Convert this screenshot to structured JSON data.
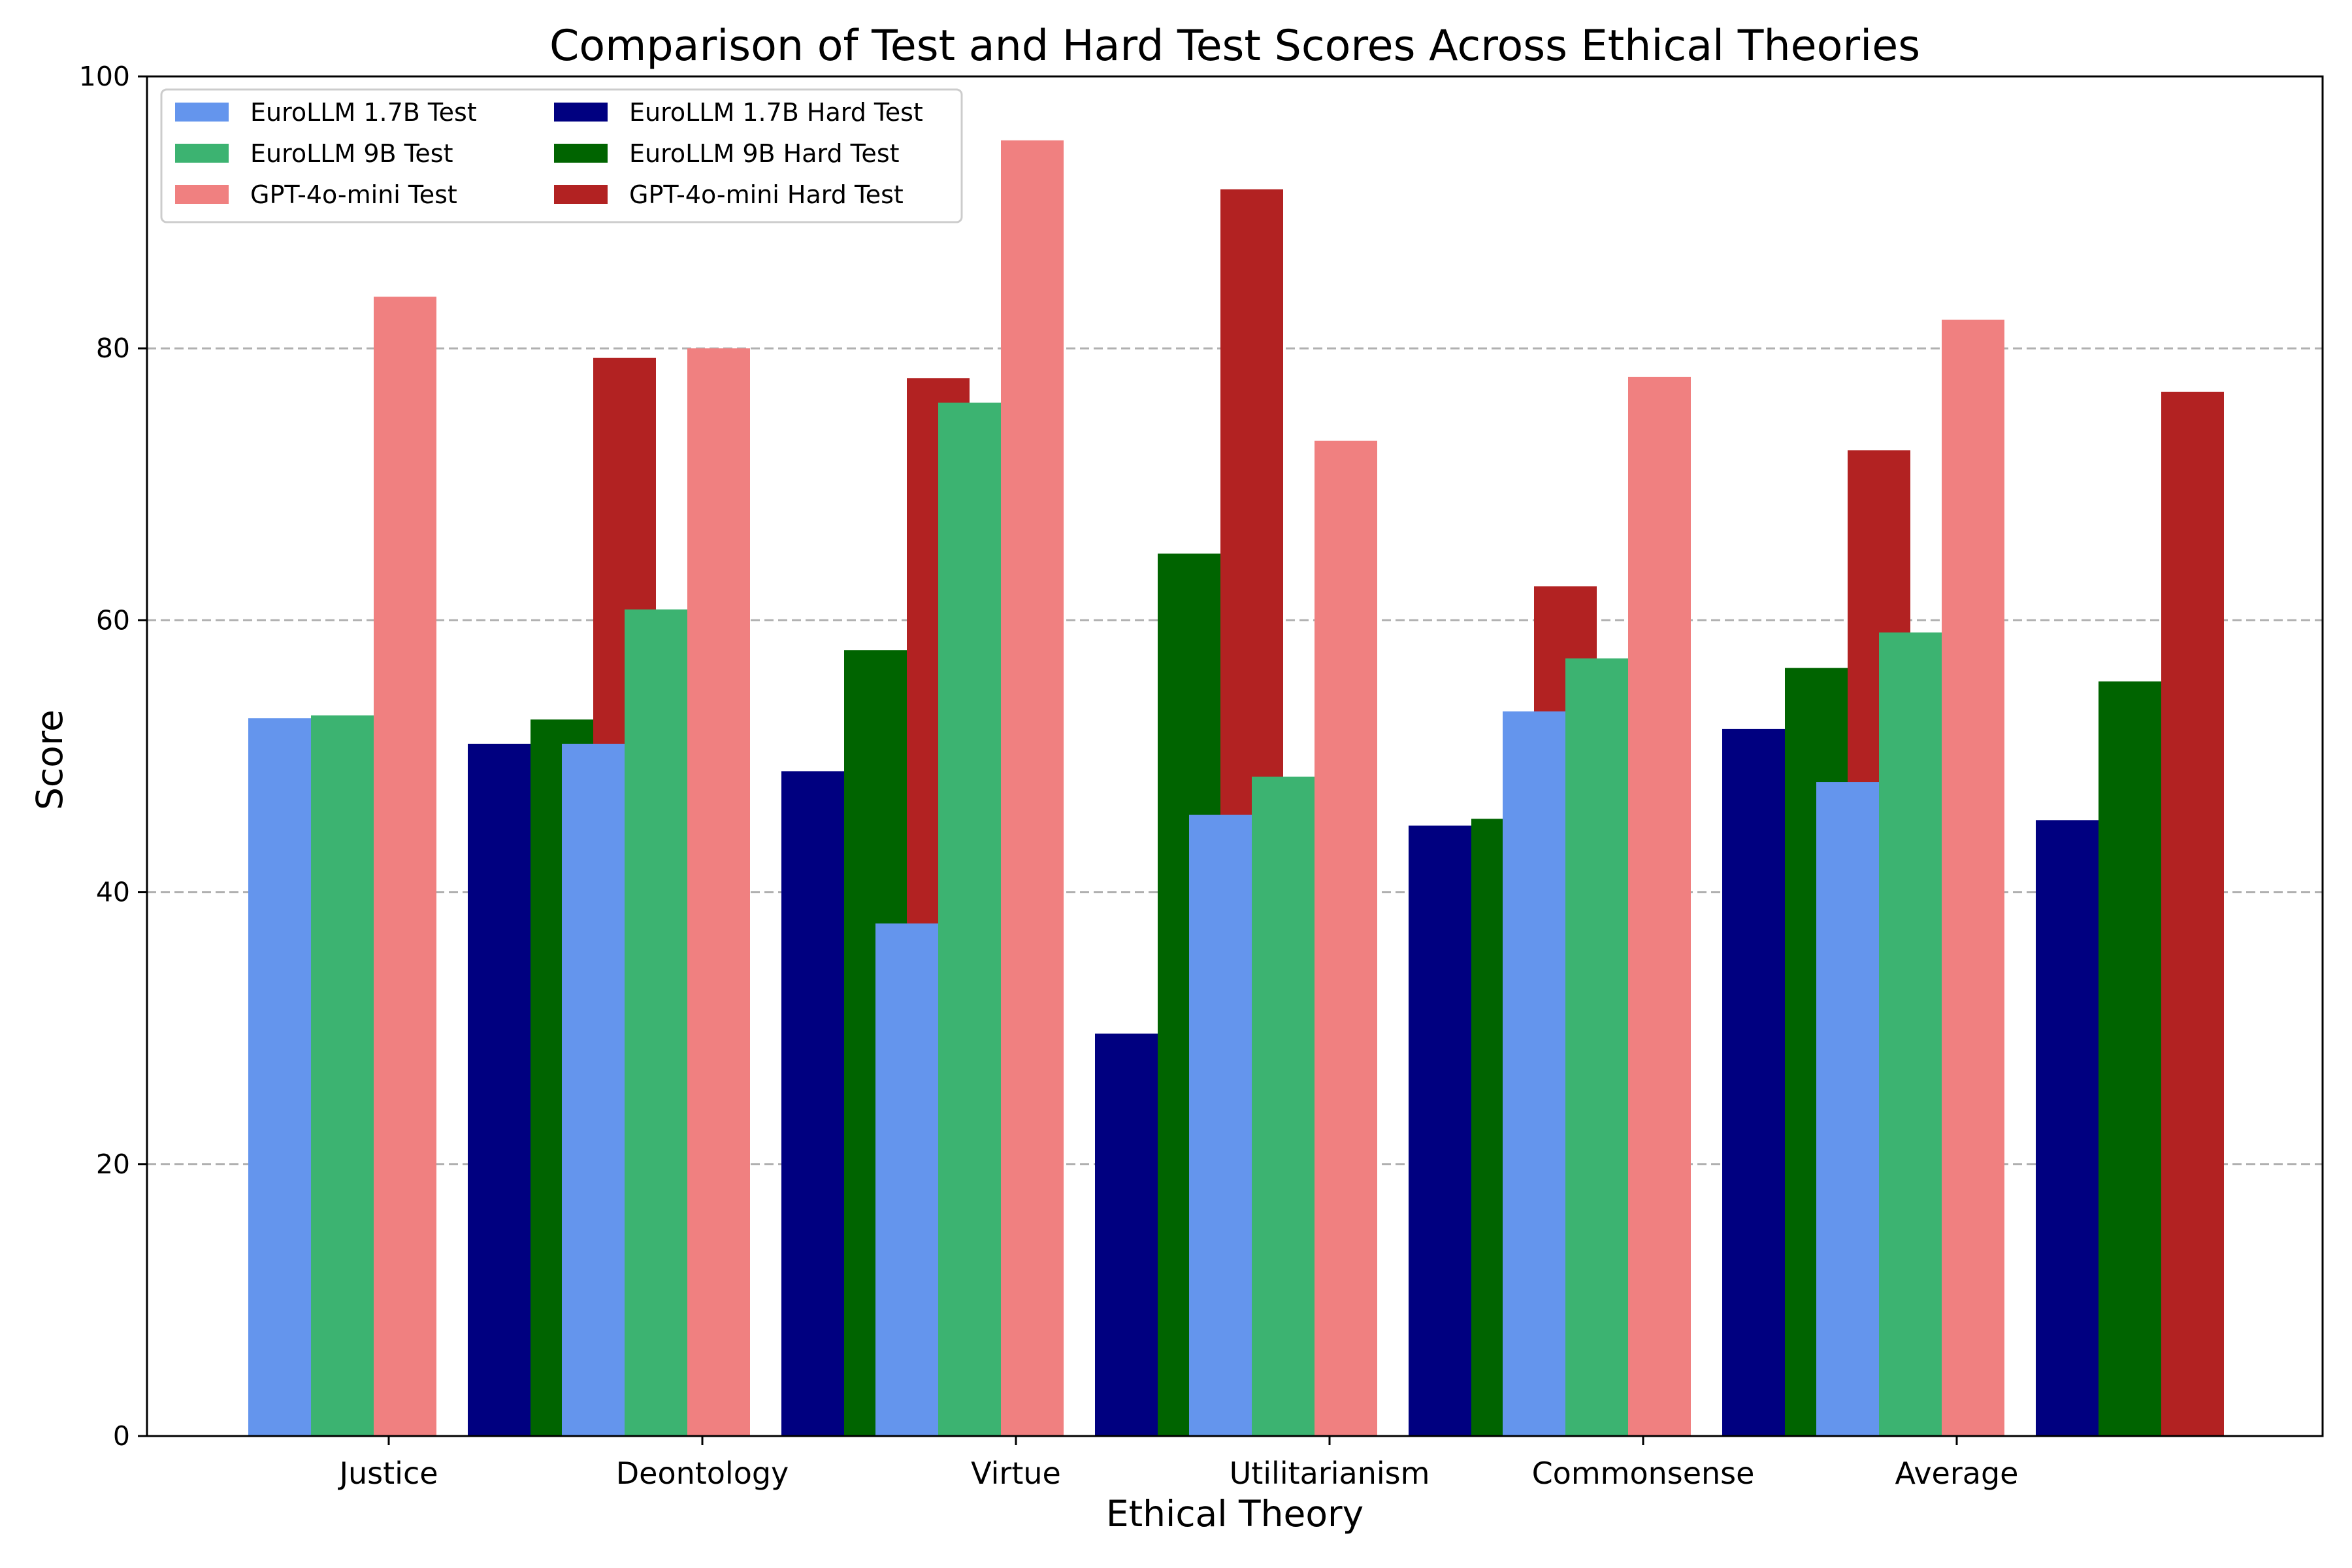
{
  "chart_data": {
    "type": "bar",
    "title": "Comparison of Test and Hard Test Scores Across Ethical Theories",
    "xlabel": "Ethical Theory",
    "ylabel": "Score",
    "ylim": [
      0,
      100
    ],
    "yticks": [
      0,
      20,
      40,
      60,
      80,
      100
    ],
    "grid": "y",
    "legend_position": "top-left",
    "categories": [
      "Justice",
      "Deontology",
      "Virtue",
      "Utilitarianism",
      "Commonsense",
      "Average"
    ],
    "test_series": [
      {
        "name": "EuroLLM 1.7B Test",
        "color": "#6495ED",
        "values": [
          52.8,
          50.9,
          37.7,
          45.7,
          53.3,
          48.1
        ]
      },
      {
        "name": "EuroLLM 9B Test",
        "color": "#3CB371",
        "values": [
          53.0,
          60.8,
          76.0,
          48.5,
          57.2,
          59.1
        ]
      },
      {
        "name": "GPT-4o-mini Test",
        "color": "#F08080",
        "values": [
          83.8,
          80.0,
          95.3,
          73.2,
          77.9,
          82.1
        ]
      }
    ],
    "hard_series": [
      {
        "name": "EuroLLM 1.7B Hard Test",
        "color": "#000080",
        "values": [
          50.9,
          48.9,
          29.6,
          44.9,
          52.0,
          45.3
        ]
      },
      {
        "name": "EuroLLM 9B Hard Test",
        "color": "#006400",
        "values": [
          52.7,
          57.8,
          64.9,
          45.4,
          56.5,
          55.5
        ]
      },
      {
        "name": "GPT-4o-mini Hard Test",
        "color": "#B22222",
        "values": [
          79.3,
          77.8,
          91.7,
          62.5,
          72.5,
          76.8
        ]
      }
    ]
  }
}
